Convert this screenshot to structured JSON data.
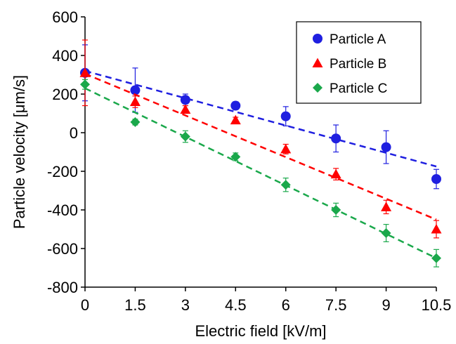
{
  "chart_data": {
    "type": "scatter",
    "title": "",
    "xlabel": "Electric field [kV/m]",
    "ylabel": "Particle velocity [μm/s]",
    "xlim": [
      0,
      10.5
    ],
    "ylim": [
      -800,
      600
    ],
    "x_ticks": [
      "0",
      "1.5",
      "3",
      "4.5",
      "6",
      "7.5",
      "9",
      "10.5"
    ],
    "y_ticks": [
      "600",
      "400",
      "200",
      "0",
      "-200",
      "-400",
      "-600",
      "-800"
    ],
    "legend_position": "top-right",
    "grid": false,
    "series": [
      {
        "name": "Particle A",
        "marker": "circle",
        "color": "#1f1fe0",
        "x": [
          0,
          1.5,
          3,
          4.5,
          6,
          7.5,
          9,
          10.5
        ],
        "y": [
          310,
          220,
          170,
          140,
          85,
          -30,
          -75,
          -240
        ],
        "err": [
          145,
          115,
          30,
          20,
          50,
          70,
          85,
          50
        ],
        "fit": [
          [
            0,
            320
          ],
          [
            10.5,
            -175
          ]
        ]
      },
      {
        "name": "Particle B",
        "marker": "triangle",
        "color": "#ff0000",
        "x": [
          0,
          1.5,
          3,
          4.5,
          6,
          7.5,
          9,
          10.5
        ],
        "y": [
          310,
          160,
          120,
          65,
          -85,
          -215,
          -385,
          -500
        ],
        "err": [
          170,
          30,
          20,
          15,
          25,
          30,
          35,
          45
        ],
        "fit": [
          [
            0,
            305
          ],
          [
            10.5,
            -450
          ]
        ]
      },
      {
        "name": "Particle C",
        "marker": "diamond",
        "color": "#1aa84b",
        "x": [
          0,
          1.5,
          3,
          4.5,
          6,
          7.5,
          9,
          10.5
        ],
        "y": [
          250,
          55,
          -20,
          -125,
          -270,
          -400,
          -520,
          -650
        ],
        "err": [
          25,
          15,
          30,
          20,
          35,
          35,
          45,
          45
        ],
        "fit": [
          [
            0,
            230
          ],
          [
            10.5,
            -650
          ]
        ]
      }
    ]
  }
}
